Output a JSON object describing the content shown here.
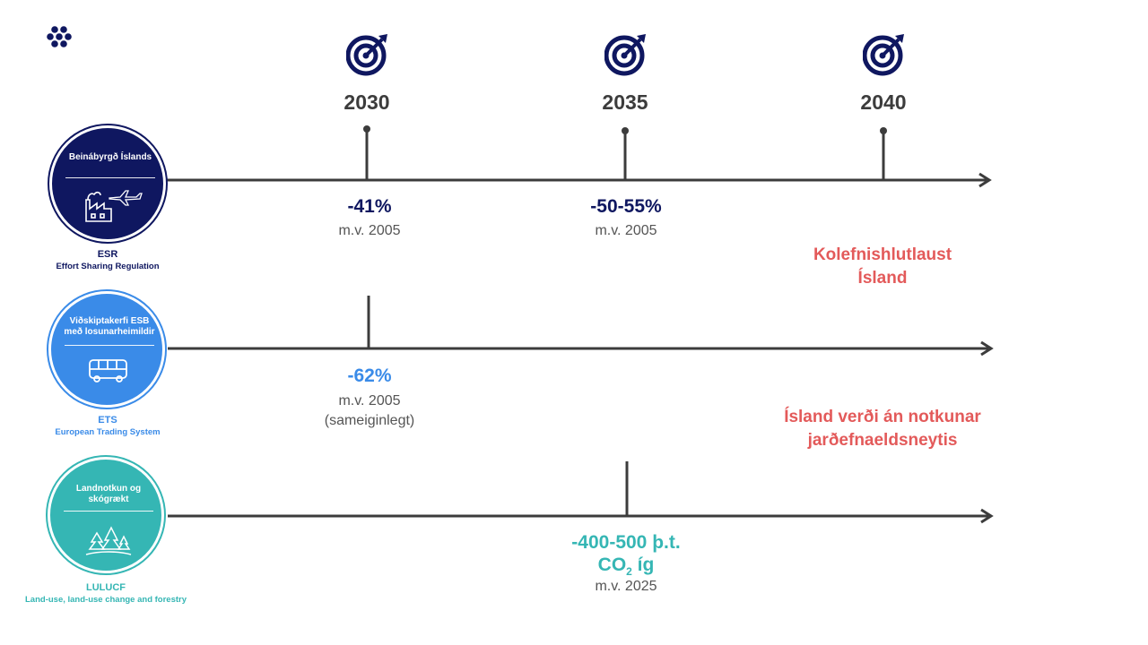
{
  "colors": {
    "navy": "#0f1760",
    "ets_blue": "#3a8be8",
    "lulucf_teal": "#35b6b4",
    "goal_red": "#e35a5a",
    "axis": "#3c3c3c"
  },
  "logo_icon": "hexagon-cluster-icon",
  "milestones": [
    {
      "year": "2030",
      "icon": "target-icon"
    },
    {
      "year": "2035",
      "icon": "target-icon"
    },
    {
      "year": "2040",
      "icon": "target-icon"
    }
  ],
  "rows": [
    {
      "id": "esr",
      "badge_title": "Beinábyrgð Íslands",
      "badge_icons": [
        "factory-icon",
        "airplane-icon"
      ],
      "code": "ESR",
      "code_sub": "Effort Sharing Regulation",
      "targets": [
        {
          "value": "-41%",
          "ref": "m.v. 2005"
        },
        {
          "value": "-50-55%",
          "ref": "m.v. 2005"
        }
      ]
    },
    {
      "id": "ets",
      "badge_title": "Viðskiptakerfi ESB með losunarheimildir",
      "badge_icons": [
        "bus-icon"
      ],
      "code": "ETS",
      "code_sub": "European Trading System",
      "targets": [
        {
          "value": "-62%",
          "ref": "m.v. 2005",
          "note": "(sameiginlegt)"
        }
      ]
    },
    {
      "id": "lulucf",
      "badge_title": "Landnotkun og skógrækt",
      "badge_icons": [
        "trees-icon"
      ],
      "code": "LULUCF",
      "code_sub": "Land-use, land-use change and forestry",
      "targets": [
        {
          "value": "-400-500 þ.t.",
          "value_line2_main": "CO",
          "value_line2_sub": "2",
          "value_line2_tail": " íg",
          "ref": "m.v. 2025"
        }
      ]
    }
  ],
  "goals": [
    {
      "line1": "Kolefnishlutlaust",
      "line2": "Ísland"
    },
    {
      "line1": "Ísland verði án notkunar",
      "line2": "jarðefnaeldsneytis"
    }
  ]
}
